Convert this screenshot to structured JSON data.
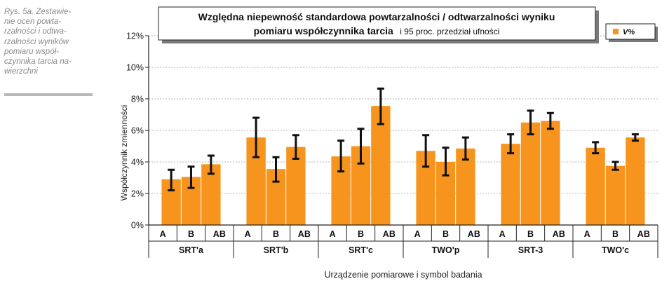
{
  "caption": "Rys. 5a. Zestawie-\nnie ocen powta-\nrzalności i odtwa-\nrzalności wyników\npomiaru współ-\nczynnika tarcia na-\nwierzchni",
  "chart_data": {
    "type": "bar",
    "title_line1": "Względna niepewność standardowa powtarzalności / odtwarzalności wyniku",
    "title_line2_bold": "pomiaru współczynnika tarcia",
    "title_line2_normal": "i 95 proc. przedział ufności",
    "ylabel": "Współczynnik zmienności",
    "xlabel": "Urządzenie pomiarowe i symbol badania",
    "ylim": [
      0,
      12
    ],
    "yticks": [
      "0%",
      "2%",
      "4%",
      "6%",
      "8%",
      "10%",
      "12%"
    ],
    "grid": true,
    "legend": {
      "placement": "top-right",
      "label": "V%"
    },
    "bar_color": "#f7941d",
    "groups": [
      {
        "name": "SRT'a",
        "categories": [
          "A",
          "B",
          "AB"
        ],
        "values": [
          2.9,
          3.05,
          3.85
        ],
        "err_low": [
          2.2,
          2.35,
          3.25
        ],
        "err_high": [
          3.5,
          3.7,
          4.4
        ]
      },
      {
        "name": "SRT'b",
        "categories": [
          "A",
          "B",
          "AB"
        ],
        "values": [
          5.55,
          3.55,
          4.95
        ],
        "err_low": [
          4.3,
          2.75,
          4.2
        ],
        "err_high": [
          6.8,
          4.3,
          5.7
        ]
      },
      {
        "name": "SRT'c",
        "categories": [
          "A",
          "B",
          "AB"
        ],
        "values": [
          4.35,
          5.0,
          7.55
        ],
        "err_low": [
          3.4,
          3.9,
          6.4
        ],
        "err_high": [
          5.35,
          6.1,
          8.65
        ]
      },
      {
        "name": "TWO'p",
        "categories": [
          "A",
          "B",
          "AB"
        ],
        "values": [
          4.7,
          4.0,
          4.85
        ],
        "err_low": [
          3.7,
          3.15,
          4.15
        ],
        "err_high": [
          5.7,
          4.9,
          5.55
        ]
      },
      {
        "name": "SRT-3",
        "categories": [
          "A",
          "B",
          "AB"
        ],
        "values": [
          5.15,
          6.5,
          6.6
        ],
        "err_low": [
          4.55,
          5.75,
          6.1
        ],
        "err_high": [
          5.75,
          7.25,
          7.1
        ]
      },
      {
        "name": "TWO'c",
        "categories": [
          "A",
          "B",
          "AB"
        ],
        "values": [
          4.9,
          3.75,
          5.55
        ],
        "err_low": [
          4.55,
          3.5,
          5.35
        ],
        "err_high": [
          5.25,
          4.0,
          5.75
        ]
      }
    ]
  }
}
